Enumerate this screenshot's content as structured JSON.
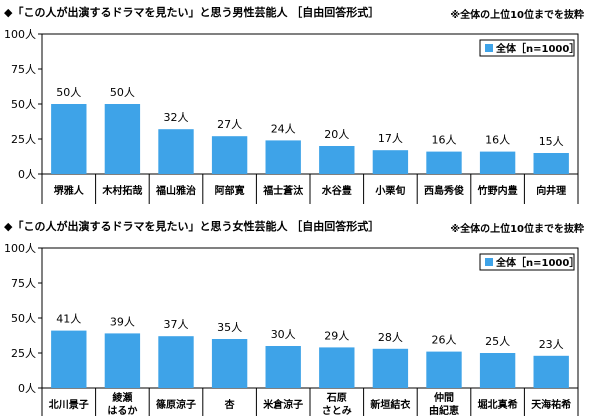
{
  "chart_data": [
    {
      "type": "bar",
      "title": "◆「この人が出演するドラマを見たい」と思う男性芸能人 ［自由回答形式］",
      "note": "※全体の上位10位までを抜粋",
      "legend": "全体［n=1000］",
      "legend_position": "top-right",
      "ylim": [
        0,
        100
      ],
      "yticks": [
        "0人",
        "25人",
        "50人",
        "75人",
        "100人"
      ],
      "ytick_values": [
        0,
        25,
        50,
        75,
        100
      ],
      "grid": false,
      "categories": [
        "堺雅人",
        "木村拓哉",
        "福山雅治",
        "阿部寛",
        "福士蒼汰",
        "水谷豊",
        "小栗旬",
        "西島秀俊",
        "竹野内豊",
        "向井理"
      ],
      "values": [
        50,
        50,
        32,
        27,
        24,
        20,
        17,
        16,
        16,
        15
      ],
      "data_labels": [
        "50人",
        "50人",
        "32人",
        "27人",
        "24人",
        "20人",
        "17人",
        "16人",
        "16人",
        "15人"
      ],
      "bar_color": "#3ea3e8"
    },
    {
      "type": "bar",
      "title": "◆「この人が出演するドラマを見たい」と思う女性芸能人 ［自由回答形式］",
      "note": "※全体の上位10位までを抜粋",
      "legend": "全体［n=1000］",
      "legend_position": "top-right",
      "ylim": [
        0,
        100
      ],
      "yticks": [
        "0人",
        "25人",
        "50人",
        "75人",
        "100人"
      ],
      "ytick_values": [
        0,
        25,
        50,
        75,
        100
      ],
      "grid": false,
      "categories": [
        "北川景子",
        "綾瀬\nはるか",
        "篠原涼子",
        "杏",
        "米倉涼子",
        "石原\nさとみ",
        "新垣結衣",
        "仲間\n由紀恵",
        "堀北真希",
        "天海祐希"
      ],
      "values": [
        41,
        39,
        37,
        35,
        30,
        29,
        28,
        26,
        25,
        23
      ],
      "data_labels": [
        "41人",
        "39人",
        "37人",
        "35人",
        "30人",
        "29人",
        "28人",
        "26人",
        "25人",
        "23人"
      ],
      "bar_color": "#3ea3e8"
    }
  ]
}
